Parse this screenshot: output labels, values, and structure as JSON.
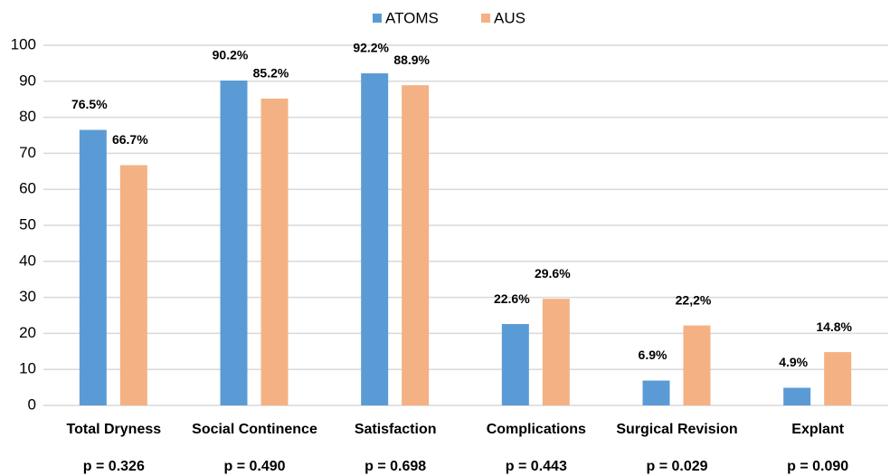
{
  "chart_data": {
    "type": "bar",
    "categories": [
      "Total Dryness",
      "Social Continence",
      "Satisfaction",
      "Complications",
      "Surgical Revision",
      "Explant"
    ],
    "series": [
      {
        "name": "ATOMS",
        "color": "#5b9bd5",
        "values": [
          76.5,
          90.2,
          92.2,
          22.6,
          6.9,
          4.9
        ],
        "value_labels": [
          "76.5%",
          "90.2%",
          "92.2%",
          "22.6%",
          "6.9%",
          "4.9%"
        ]
      },
      {
        "name": "AUS",
        "color": "#f4b183",
        "values": [
          66.7,
          85.2,
          88.9,
          29.6,
          22.2,
          14.8
        ],
        "value_labels": [
          "66.7%",
          "85.2%",
          "88.9%",
          "29.6%",
          "22,2%",
          "14.8%"
        ]
      }
    ],
    "annotations": [
      "p = 0.326",
      "p = 0.490",
      "p = 0.698",
      "p = 0.443",
      "p = 0.029",
      "p = 0.090"
    ],
    "ylim": [
      0,
      100
    ],
    "yticks": [
      0,
      10,
      20,
      30,
      40,
      50,
      60,
      70,
      80,
      90,
      100
    ],
    "grid": true,
    "legend": "top"
  }
}
